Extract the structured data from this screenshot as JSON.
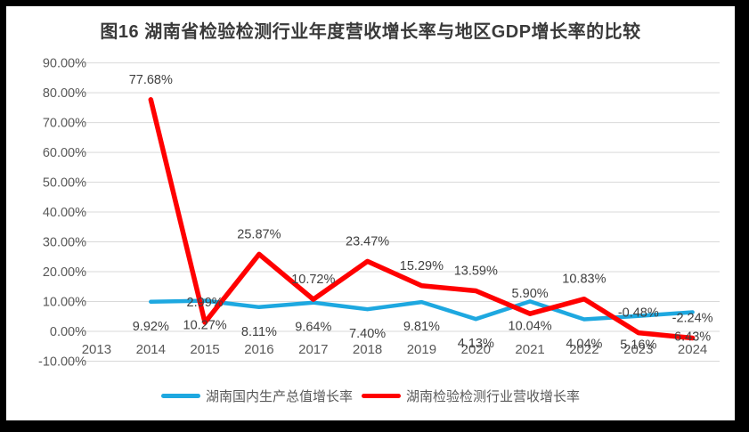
{
  "title": "图16  湖南省检验检测行业年度营收增长率与地区GDP增长率的比较",
  "chart_data": {
    "type": "line",
    "title": "图16  湖南省检验检测行业年度营收增长率与地区GDP增长率的比较",
    "categories": [
      "2013",
      "2014",
      "2015",
      "2016",
      "2017",
      "2018",
      "2019",
      "2020",
      "2021",
      "2022",
      "2023",
      "2024"
    ],
    "series": [
      {
        "name": "湖南国内生产总值增长率",
        "color": "#1EA8E0",
        "label_position": "below",
        "values": [
          null,
          9.92,
          10.27,
          8.11,
          9.64,
          7.4,
          9.81,
          4.13,
          10.04,
          4.04,
          5.16,
          6.43
        ],
        "data_labels": [
          null,
          "9.92%",
          "10.27%",
          "8.11%",
          "9.64%",
          "7.40%",
          "9.81%",
          "4.13%",
          "10.04%",
          "4.04%",
          "5.16%",
          "6.43%"
        ]
      },
      {
        "name": "湖南检验检测行业营收增长率",
        "color": "#FF0000",
        "label_position": "above",
        "values": [
          null,
          77.68,
          2.99,
          25.87,
          10.72,
          23.47,
          15.29,
          13.59,
          5.9,
          10.83,
          -0.48,
          -2.24
        ],
        "data_labels": [
          null,
          "77.68%",
          "2.99%",
          "25.87%",
          "10.72%",
          "23.47%",
          "15.29%",
          "13.59%",
          "5.90%",
          "10.83%",
          "-0.48%",
          "-2.24%"
        ]
      }
    ],
    "ylim": [
      -10,
      90
    ],
    "y_tick_step": 10,
    "y_tick_labels": [
      "90.00%",
      "80.00%",
      "70.00%",
      "60.00%",
      "50.00%",
      "40.00%",
      "30.00%",
      "20.00%",
      "10.00%",
      "0.00%",
      "-10.00%"
    ],
    "grid": true,
    "gridline_color": "#D9D9D9",
    "axis_text_color": "#595959",
    "data_label_color": "#404040",
    "legend_position": "bottom"
  }
}
